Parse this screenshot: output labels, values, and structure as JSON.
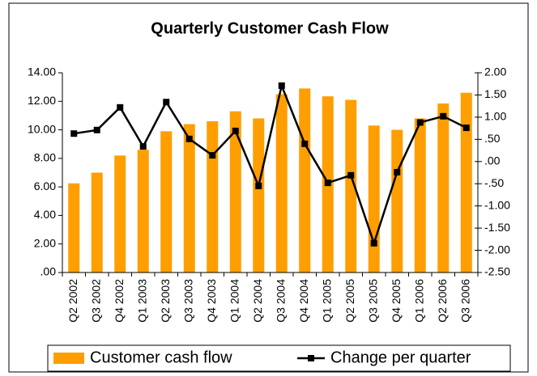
{
  "chart_data": {
    "type": "bar_line",
    "title": "Quarterly Customer Cash Flow",
    "categories": [
      "Q2 2002",
      "Q3 2002",
      "Q4 2002",
      "Q1 2003",
      "Q2 2003",
      "Q3 2003",
      "Q4 2003",
      "Q1 2004",
      "Q2 2004",
      "Q3 2004",
      "Q4 2004",
      "Q1 2005",
      "Q2 2005",
      "Q3 2005",
      "Q4 2005",
      "Q1 2006",
      "Q2 2006",
      "Q3 2006"
    ],
    "series": [
      {
        "name": "Customer cash flow",
        "color": "#ff9e00",
        "type": "bar",
        "values": [
          6.25,
          7.0,
          8.2,
          8.6,
          9.9,
          10.4,
          10.6,
          11.3,
          10.8,
          12.5,
          12.9,
          12.35,
          12.1,
          10.3,
          10.0,
          10.8,
          11.85,
          12.6
        ]
      },
      {
        "name": "Change per quarter",
        "color": "#000000",
        "type": "line",
        "axis": "y2",
        "values": [
          0.63,
          0.71,
          1.22,
          0.34,
          1.34,
          0.51,
          0.14,
          0.69,
          -0.55,
          1.71,
          0.4,
          -0.48,
          -0.31,
          -1.84,
          -0.24,
          0.88,
          1.02,
          0.76
        ]
      }
    ],
    "ylim": [
      0,
      14
    ],
    "yticks": [
      {
        "value": 0,
        "label": ".00"
      },
      {
        "value": 2,
        "label": "2.00"
      },
      {
        "value": 4,
        "label": "4.00"
      },
      {
        "value": 6,
        "label": "6.00"
      },
      {
        "value": 8,
        "label": "8.00"
      },
      {
        "value": 10,
        "label": "10.00"
      },
      {
        "value": 12,
        "label": "12.00"
      },
      {
        "value": 14,
        "label": "14.00"
      }
    ],
    "y2lim": [
      -2.5,
      2.0
    ],
    "y2ticks": [
      {
        "value": 2,
        "label": "2.00"
      },
      {
        "value": 1.5,
        "label": "1.50"
      },
      {
        "value": 1,
        "label": "1.00"
      },
      {
        "value": 0.5,
        "label": ".50"
      },
      {
        "value": 0,
        "label": ".00"
      },
      {
        "value": -0.5,
        "label": "-.50"
      },
      {
        "value": -1,
        "label": "-1.00"
      },
      {
        "value": -1.5,
        "label": "-1.50"
      },
      {
        "value": -2,
        "label": "-2.00"
      },
      {
        "value": -2.5,
        "label": "-2.50"
      }
    ],
    "legend": "bottom"
  }
}
